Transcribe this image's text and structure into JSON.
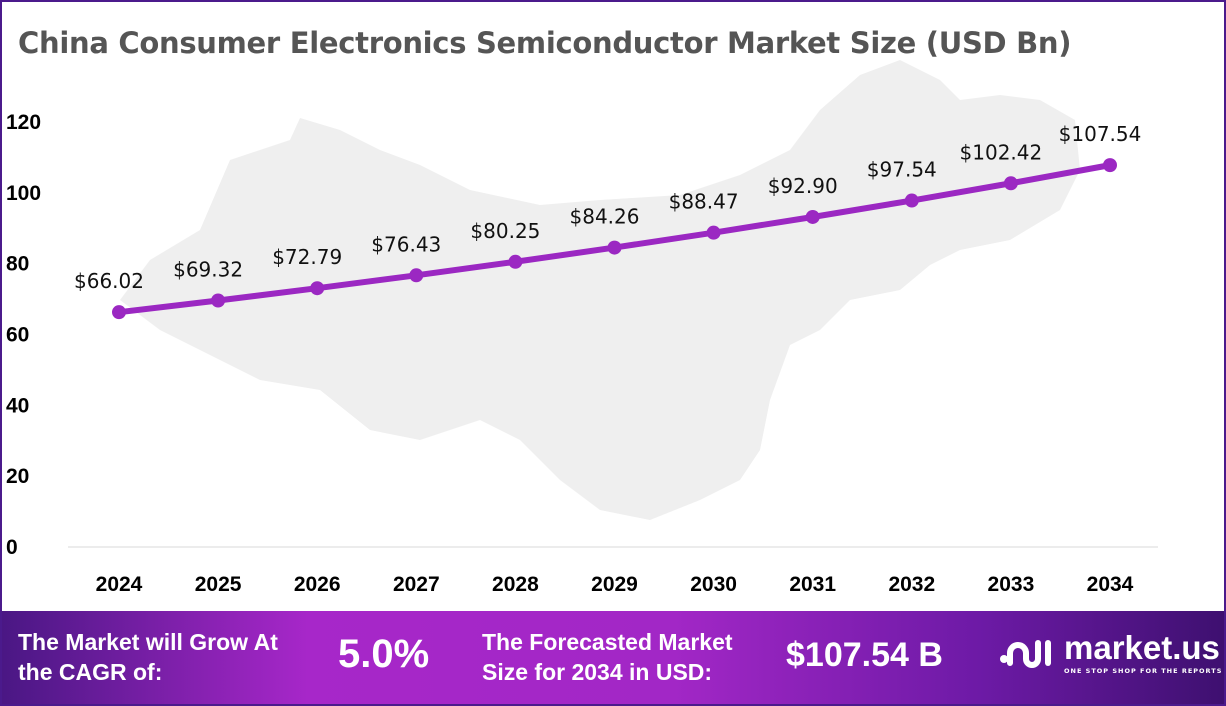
{
  "chart_data": {
    "type": "line",
    "title": "China Consumer Electronics Semiconductor Market Size (USD Bn)",
    "xlabel": "",
    "ylabel": "",
    "categories": [
      "2024",
      "2025",
      "2026",
      "2027",
      "2028",
      "2029",
      "2030",
      "2031",
      "2032",
      "2033",
      "2034"
    ],
    "values": [
      66.02,
      69.32,
      72.79,
      76.43,
      80.25,
      84.26,
      88.47,
      92.9,
      97.54,
      102.42,
      107.54
    ],
    "data_labels": [
      "$66.02",
      "$69.32",
      "$72.79",
      "$76.43",
      "$80.25",
      "$84.26",
      "$88.47",
      "$92.90",
      "$97.54",
      "$102.42",
      "$107.54"
    ],
    "ylim": [
      0,
      120
    ],
    "yticks": [
      "0",
      "20",
      "40",
      "60",
      "80",
      "100",
      "120"
    ],
    "grid": false,
    "legend": "none",
    "line_color": "#9b28c2"
  },
  "footer": {
    "cagr_label": "The Market will Grow At the CAGR of:",
    "cagr_value": "5.0%",
    "forecast_label": "The Forecasted Market Size for 2034 in USD:",
    "forecast_value": "$107.54 B",
    "logo_name": "market.us",
    "logo_tagline": "ONE STOP SHOP FOR THE REPORTS"
  }
}
